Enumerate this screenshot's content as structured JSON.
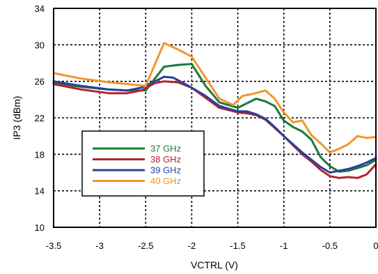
{
  "chart_data": {
    "type": "line",
    "title": "",
    "xlabel": "VCTRL (V)",
    "ylabel": "IP3 (dBm)",
    "xlim": [
      -3.5,
      0
    ],
    "ylim": [
      10,
      34
    ],
    "xticks": [
      -3.5,
      -3,
      -2.5,
      -2,
      -1.5,
      -1,
      -0.5,
      0
    ],
    "xtick_labels": [
      "-3.5",
      "-3",
      "-2.5",
      "-2",
      "-1.5",
      "-1",
      "-0.5",
      "0"
    ],
    "yticks": [
      10,
      14,
      18,
      22,
      26,
      30,
      34
    ],
    "ytick_labels": [
      "10",
      "14",
      "18",
      "22",
      "26",
      "30",
      "34"
    ],
    "grid": true,
    "legend": "inside-lower-left",
    "series": [
      {
        "name": "37 GHz",
        "color": "#1a7a3a",
        "x": [
          -3.5,
          -3.2,
          -2.9,
          -2.7,
          -2.5,
          -2.3,
          -2.15,
          -2.0,
          -1.85,
          -1.7,
          -1.5,
          -1.4,
          -1.3,
          -1.2,
          -1.1,
          -1.0,
          -0.9,
          -0.8,
          -0.7,
          -0.6,
          -0.5,
          -0.4,
          -0.3,
          -0.2,
          -0.1,
          0.0
        ],
        "y": [
          25.8,
          25.4,
          25.1,
          25.0,
          25.0,
          27.6,
          27.8,
          27.9,
          25.5,
          23.7,
          23.1,
          23.6,
          24.1,
          23.8,
          23.3,
          21.7,
          21.0,
          20.5,
          19.6,
          17.7,
          16.7,
          16.1,
          16.2,
          16.5,
          16.8,
          17.4
        ]
      },
      {
        "name": "38 GHz",
        "color": "#b3242a",
        "x": [
          -3.5,
          -3.2,
          -2.9,
          -2.7,
          -2.55,
          -2.4,
          -2.3,
          -2.15,
          -2.0,
          -1.85,
          -1.7,
          -1.5,
          -1.4,
          -1.3,
          -1.2,
          -1.1,
          -1.0,
          -0.9,
          -0.8,
          -0.7,
          -0.6,
          -0.5,
          -0.4,
          -0.3,
          -0.2,
          -0.1,
          0.0
        ],
        "y": [
          25.7,
          25.1,
          24.7,
          24.7,
          25.0,
          25.8,
          26.0,
          25.9,
          25.3,
          24.2,
          23.1,
          22.6,
          22.5,
          22.3,
          21.8,
          20.9,
          20.0,
          19.0,
          18.0,
          17.2,
          16.3,
          15.6,
          15.4,
          15.5,
          15.4,
          15.8,
          16.9
        ]
      },
      {
        "name": "39 GHz",
        "color": "#2a3f9e",
        "x": [
          -3.5,
          -3.2,
          -2.9,
          -2.7,
          -2.55,
          -2.4,
          -2.3,
          -2.2,
          -2.0,
          -1.85,
          -1.7,
          -1.5,
          -1.4,
          -1.3,
          -1.2,
          -1.1,
          -1.0,
          -0.9,
          -0.8,
          -0.7,
          -0.6,
          -0.5,
          -0.4,
          -0.3,
          -0.2,
          -0.1,
          0.0
        ],
        "y": [
          26.0,
          25.5,
          25.1,
          25.0,
          25.3,
          26.0,
          26.5,
          26.4,
          25.3,
          24.4,
          23.3,
          22.7,
          22.7,
          22.4,
          21.9,
          21.0,
          20.0,
          19.1,
          18.2,
          17.4,
          16.6,
          16.0,
          16.2,
          16.4,
          16.7,
          17.1,
          17.6
        ]
      },
      {
        "name": "40 GHz",
        "color": "#f0962e",
        "x": [
          -3.5,
          -3.2,
          -2.9,
          -2.7,
          -2.5,
          -2.3,
          -2.15,
          -2.0,
          -1.85,
          -1.7,
          -1.55,
          -1.45,
          -1.35,
          -1.2,
          -1.1,
          -1.0,
          -0.9,
          -0.8,
          -0.7,
          -0.6,
          -0.5,
          -0.4,
          -0.3,
          -0.2,
          -0.1,
          0.0
        ],
        "y": [
          26.9,
          26.3,
          25.9,
          25.7,
          25.5,
          30.2,
          29.5,
          28.7,
          26.4,
          24.1,
          23.4,
          24.4,
          24.6,
          25.0,
          24.1,
          22.6,
          21.5,
          21.7,
          20.1,
          19.2,
          18.2,
          18.6,
          19.1,
          20.0,
          19.8,
          19.9
        ]
      }
    ]
  }
}
